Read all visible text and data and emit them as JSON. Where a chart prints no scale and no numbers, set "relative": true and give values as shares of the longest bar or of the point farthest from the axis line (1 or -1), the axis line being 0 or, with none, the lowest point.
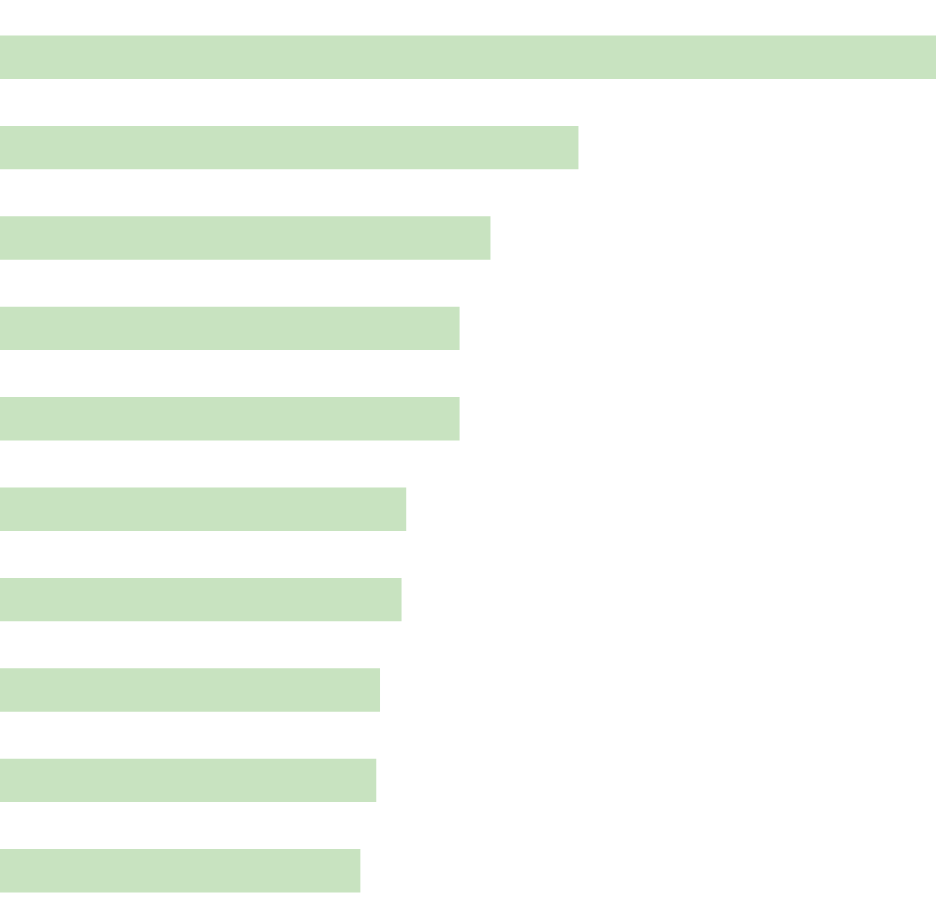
{
  "chart_data": {
    "type": "bar",
    "orientation": "horizontal",
    "relative": true,
    "categories": [
      null,
      null,
      null,
      null,
      null,
      null,
      null,
      null,
      null,
      null
    ],
    "values": [
      1,
      0.618,
      0.524,
      0.491,
      0.491,
      0.434,
      0.429,
      0.406,
      0.402,
      0.385
    ],
    "color": "#c8e3c0",
    "legend": false
  }
}
